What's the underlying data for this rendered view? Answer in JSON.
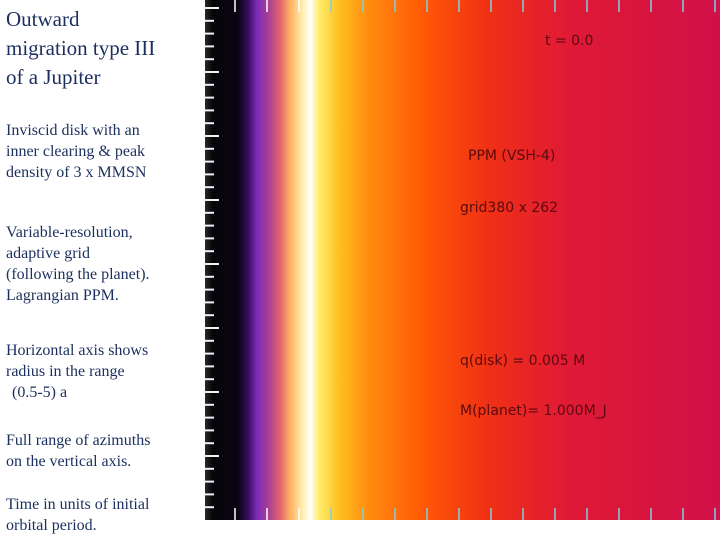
{
  "sidebar": {
    "title": [
      "Outward",
      "migration type III",
      "of a Jupiter"
    ],
    "paragraphs": [
      [
        "Inviscid disk with an",
        "inner clearing & peak",
        "density of 3 x MMSN"
      ],
      [
        "Variable-resolution,",
        "adaptive grid",
        "(following the planet).",
        "Lagrangian PPM."
      ],
      [
        "Horizontal axis shows",
        "radius in the range",
        "(0.5-5) a"
      ],
      [
        "Full range of azimuths",
        "on the vertical axis."
      ],
      [
        "Time in units of initial",
        "orbital period."
      ]
    ]
  },
  "simulation": {
    "labels": [
      "t =  0.0",
      "PPM (VSH-4)",
      "grid380 x 262",
      "q(disk) = 0.005 M",
      "M(planet)=  1.000M_J"
    ]
  }
}
